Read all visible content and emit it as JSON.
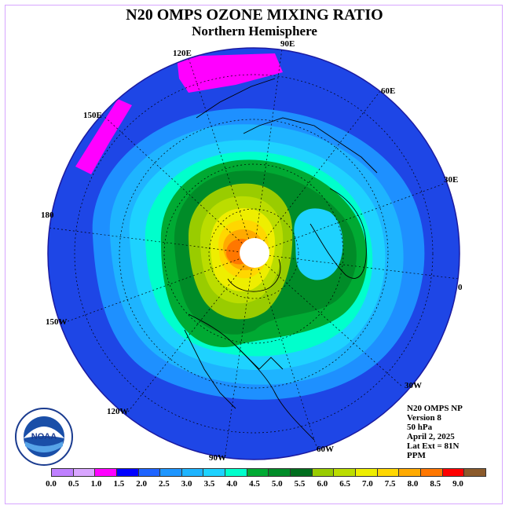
{
  "title": "N20 OMPS OZONE MIXING RATIO",
  "subtitle": "Northern Hemisphere",
  "longitude_labels": [
    "90E",
    "60E",
    "120E",
    "150E",
    "30E",
    "180",
    "0",
    "150W",
    "30W",
    "120W",
    "60W",
    "90W"
  ],
  "info": {
    "product": "N20 OMPS NP",
    "version": "Version 8",
    "level": "50 hPa",
    "date": "April 2, 2025",
    "lat_ext": "Lat Ext = 81N",
    "units": "PPM"
  },
  "logo_text": "NOAA",
  "colorbar": {
    "colors": [
      "#bf80ff",
      "#d9a6ff",
      "#ff00ff",
      "#0000ff",
      "#1e64ff",
      "#1e96ff",
      "#1eb4ff",
      "#1ed2ff",
      "#00ffcc",
      "#00aa33",
      "#008c28",
      "#006e1e",
      "#99cc00",
      "#bbdd00",
      "#eeee00",
      "#ffd700",
      "#ffaa00",
      "#ff7700",
      "#ff0000",
      "#8b5a2b"
    ],
    "ticks": [
      "0.0",
      "0.5",
      "1.0",
      "1.5",
      "2.0",
      "2.5",
      "3.0",
      "3.5",
      "4.0",
      "4.5",
      "5.0",
      "5.5",
      "6.0",
      "6.5",
      "7.0",
      "7.5",
      "8.0",
      "8.5",
      "9.0"
    ]
  }
}
